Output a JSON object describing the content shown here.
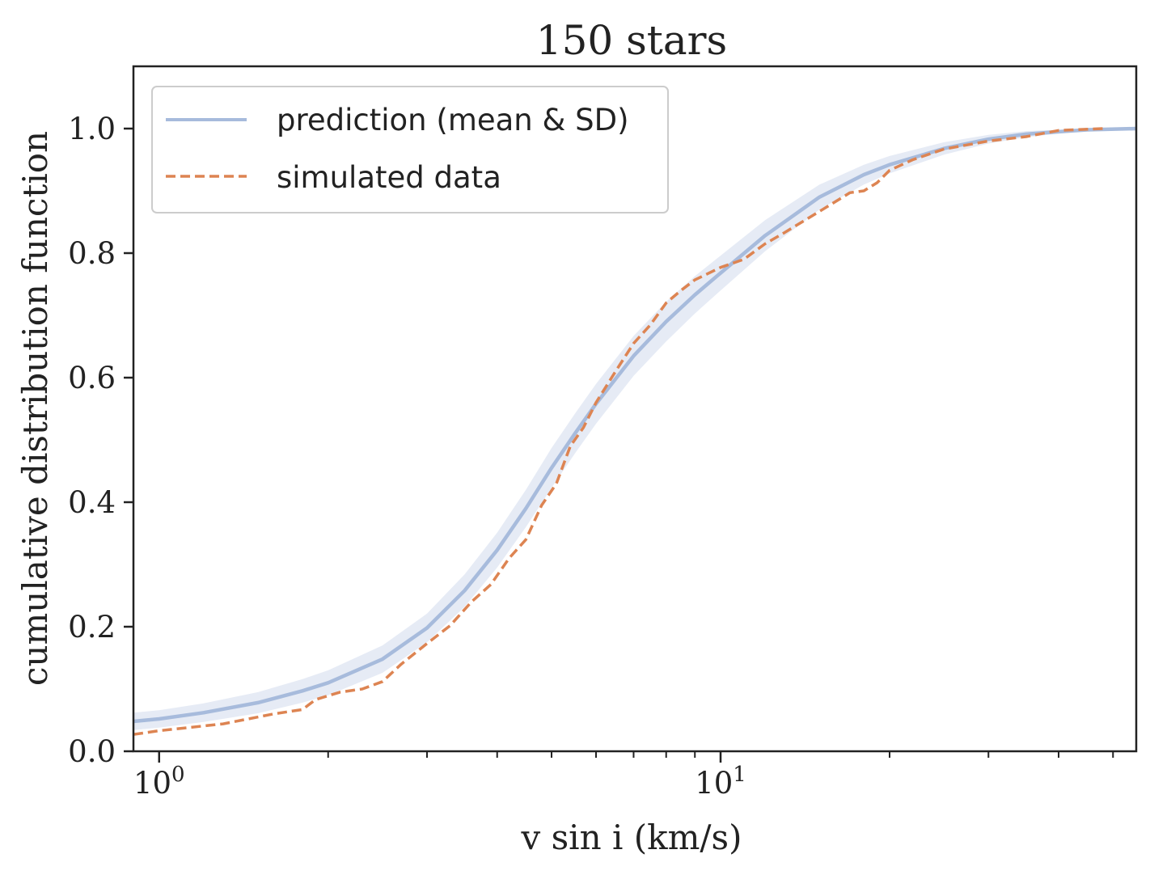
{
  "chart_data": {
    "type": "line",
    "title": "150 stars",
    "xlabel": "v sin i (km/s)",
    "ylabel": "cumulative distribution function",
    "xscale": "log",
    "xlim": [
      0.9,
      55
    ],
    "ylim": [
      0.0,
      1.1
    ],
    "grid": false,
    "legend_position": "top-left",
    "x_major_ticks": [
      1,
      10
    ],
    "x_tick_labels": [
      {
        "base": "10",
        "exp": "0"
      },
      {
        "base": "10",
        "exp": "1"
      }
    ],
    "y_ticks": [
      0.0,
      0.2,
      0.4,
      0.6,
      0.8,
      1.0
    ],
    "y_tick_labels": [
      "0.0",
      "0.2",
      "0.4",
      "0.6",
      "0.8",
      "1.0"
    ],
    "colors": {
      "prediction": "#a7bbdc",
      "band": "#e6ebf5",
      "simulated": "#dd8452",
      "axes": "#222222"
    },
    "series": [
      {
        "name": "prediction (mean & SD)",
        "style": "solid",
        "x": [
          0.9,
          1.0,
          1.2,
          1.5,
          1.8,
          2.0,
          2.5,
          3.0,
          3.5,
          4.0,
          4.5,
          5.0,
          5.5,
          6.0,
          7.0,
          8.0,
          9.0,
          10.0,
          12.0,
          15.0,
          18.0,
          20.0,
          25.0,
          30.0,
          35.0,
          40.0,
          45.0,
          55.0
        ],
        "y": [
          0.048,
          0.052,
          0.062,
          0.078,
          0.097,
          0.11,
          0.148,
          0.198,
          0.258,
          0.323,
          0.39,
          0.455,
          0.51,
          0.558,
          0.635,
          0.69,
          0.733,
          0.768,
          0.828,
          0.89,
          0.926,
          0.942,
          0.968,
          0.983,
          0.991,
          0.995,
          0.998,
          1.0
        ],
        "sd_lower": [
          0.034,
          0.038,
          0.047,
          0.061,
          0.078,
          0.09,
          0.126,
          0.175,
          0.232,
          0.295,
          0.36,
          0.423,
          0.478,
          0.526,
          0.603,
          0.658,
          0.703,
          0.74,
          0.803,
          0.87,
          0.91,
          0.928,
          0.958,
          0.976,
          0.986,
          0.992,
          0.996,
          1.0
        ],
        "sd_upper": [
          0.062,
          0.066,
          0.077,
          0.095,
          0.116,
          0.13,
          0.17,
          0.221,
          0.284,
          0.351,
          0.42,
          0.487,
          0.542,
          0.59,
          0.667,
          0.722,
          0.763,
          0.796,
          0.853,
          0.91,
          0.942,
          0.956,
          0.978,
          0.99,
          0.996,
          0.998,
          1.0,
          1.0
        ]
      },
      {
        "name": "simulated data",
        "style": "dashed",
        "x": [
          0.9,
          1.0,
          1.3,
          1.6,
          1.8,
          1.9,
          2.1,
          2.3,
          2.5,
          2.7,
          3.0,
          3.3,
          3.6,
          3.9,
          4.2,
          4.5,
          4.8,
          5.1,
          5.4,
          5.7,
          6.0,
          6.5,
          7.0,
          7.5,
          8.0,
          8.5,
          9.0,
          10.0,
          11.0,
          12.0,
          13.0,
          15.0,
          17.0,
          18.0,
          19.0,
          20.0,
          22.0,
          25.0,
          30.0,
          35.0,
          40.0,
          48.0
        ],
        "y": [
          0.027,
          0.033,
          0.044,
          0.06,
          0.067,
          0.083,
          0.095,
          0.1,
          0.112,
          0.14,
          0.173,
          0.202,
          0.24,
          0.268,
          0.31,
          0.34,
          0.395,
          0.43,
          0.49,
          0.52,
          0.56,
          0.61,
          0.655,
          0.685,
          0.72,
          0.74,
          0.757,
          0.777,
          0.79,
          0.815,
          0.833,
          0.867,
          0.897,
          0.9,
          0.913,
          0.933,
          0.95,
          0.967,
          0.98,
          0.987,
          0.997,
          1.0
        ]
      }
    ]
  }
}
